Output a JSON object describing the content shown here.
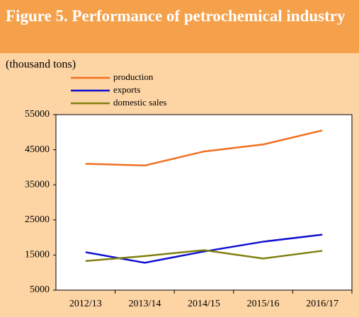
{
  "chart_data": {
    "type": "line",
    "title": "Figure 5. Performance of petrochemical industry",
    "subtitle": "(thousand tons)",
    "categories": [
      "2012/13",
      "2013/14",
      "2014/15",
      "2015/16",
      "2016/17"
    ],
    "series": [
      {
        "name": "production",
        "color": "#f07020",
        "values": [
          41000,
          40500,
          44500,
          46500,
          50500
        ]
      },
      {
        "name": "exports",
        "color": "#1010d0",
        "values": [
          15800,
          12800,
          16000,
          18800,
          20800
        ]
      },
      {
        "name": "domestic sales",
        "color": "#808010",
        "values": [
          13300,
          14700,
          16400,
          14000,
          16200
        ]
      }
    ],
    "ylim": [
      5000,
      55000
    ],
    "yticks": [
      5000,
      15000,
      25000,
      35000,
      45000,
      55000
    ],
    "grid": false
  }
}
